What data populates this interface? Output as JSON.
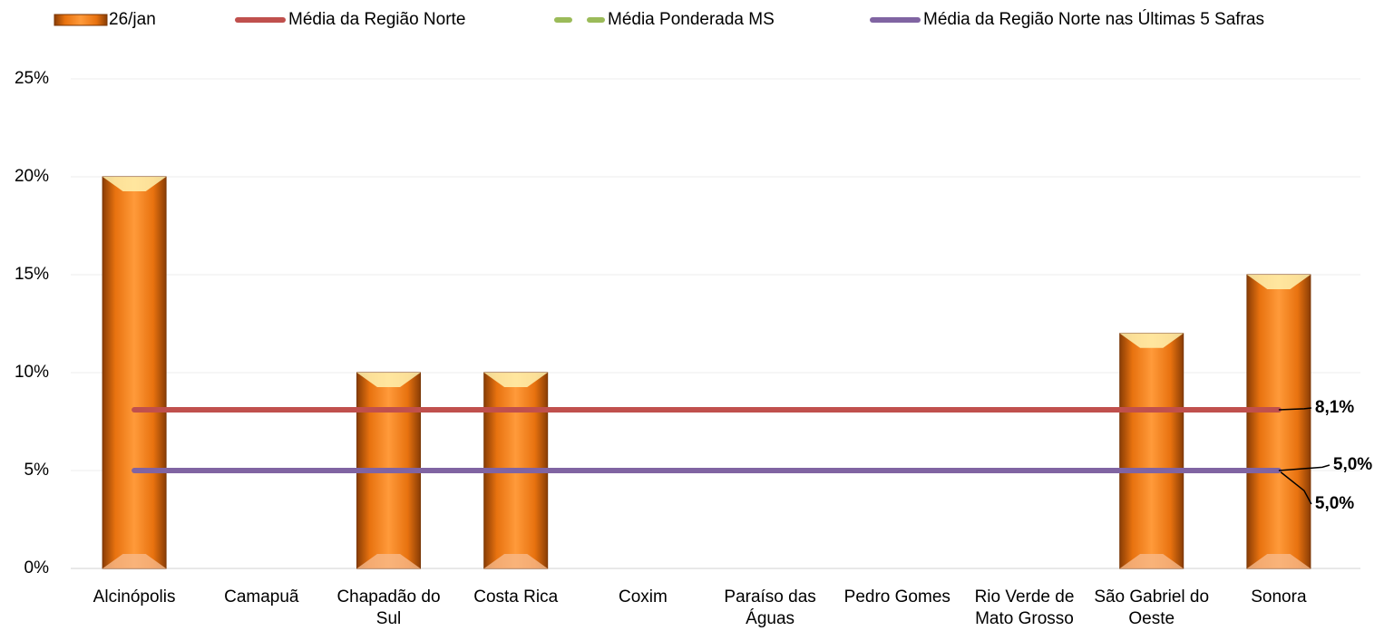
{
  "chart_data": {
    "type": "bar",
    "categories": [
      "Alcinópolis",
      "Camapuã",
      "Chapadão do Sul",
      "Costa Rica",
      "Coxim",
      "Paraíso das Águas",
      "Pedro Gomes",
      "Rio Verde de Mato Grosso",
      "São Gabriel do Oeste",
      "Sonora"
    ],
    "series": [
      {
        "name": "26/jan",
        "type": "bar",
        "color": "#e87511",
        "values": [
          20,
          0,
          10,
          10,
          0,
          0,
          0,
          0,
          12,
          15
        ]
      },
      {
        "name": "Média da Região Norte",
        "type": "line",
        "color": "#c0504d",
        "values": [
          8.1,
          8.1,
          8.1,
          8.1,
          8.1,
          8.1,
          8.1,
          8.1,
          8.1,
          8.1
        ],
        "value_labels": [
          null,
          null,
          null,
          null,
          null,
          null,
          null,
          null,
          null,
          "8,1%"
        ]
      },
      {
        "name": "Média Ponderada MS",
        "type": "line",
        "dashed": true,
        "color": "#9bbb59",
        "values": [
          5.0,
          5.0,
          5.0,
          5.0,
          5.0,
          5.0,
          5.0,
          5.0,
          5.0,
          5.0
        ],
        "value_labels": [
          null,
          null,
          null,
          null,
          null,
          null,
          null,
          null,
          null,
          "5,0%"
        ]
      },
      {
        "name": "Média da Região Norte nas Últimas 5 Safras",
        "type": "line",
        "color": "#8064a2",
        "values": [
          5.0,
          5.0,
          5.0,
          5.0,
          5.0,
          5.0,
          5.0,
          5.0,
          5.0,
          5.0
        ],
        "value_labels": [
          null,
          null,
          null,
          null,
          null,
          null,
          null,
          null,
          null,
          "5,0%"
        ]
      }
    ],
    "ylim": [
      0,
      25
    ],
    "yticks": [
      {
        "value": 0,
        "label": "0%"
      },
      {
        "value": 5,
        "label": "5%"
      },
      {
        "value": 10,
        "label": "10%"
      },
      {
        "value": 15,
        "label": "15%"
      },
      {
        "value": 20,
        "label": "20%"
      },
      {
        "value": 25,
        "label": "25%"
      }
    ],
    "grid": true,
    "legend": "top"
  }
}
